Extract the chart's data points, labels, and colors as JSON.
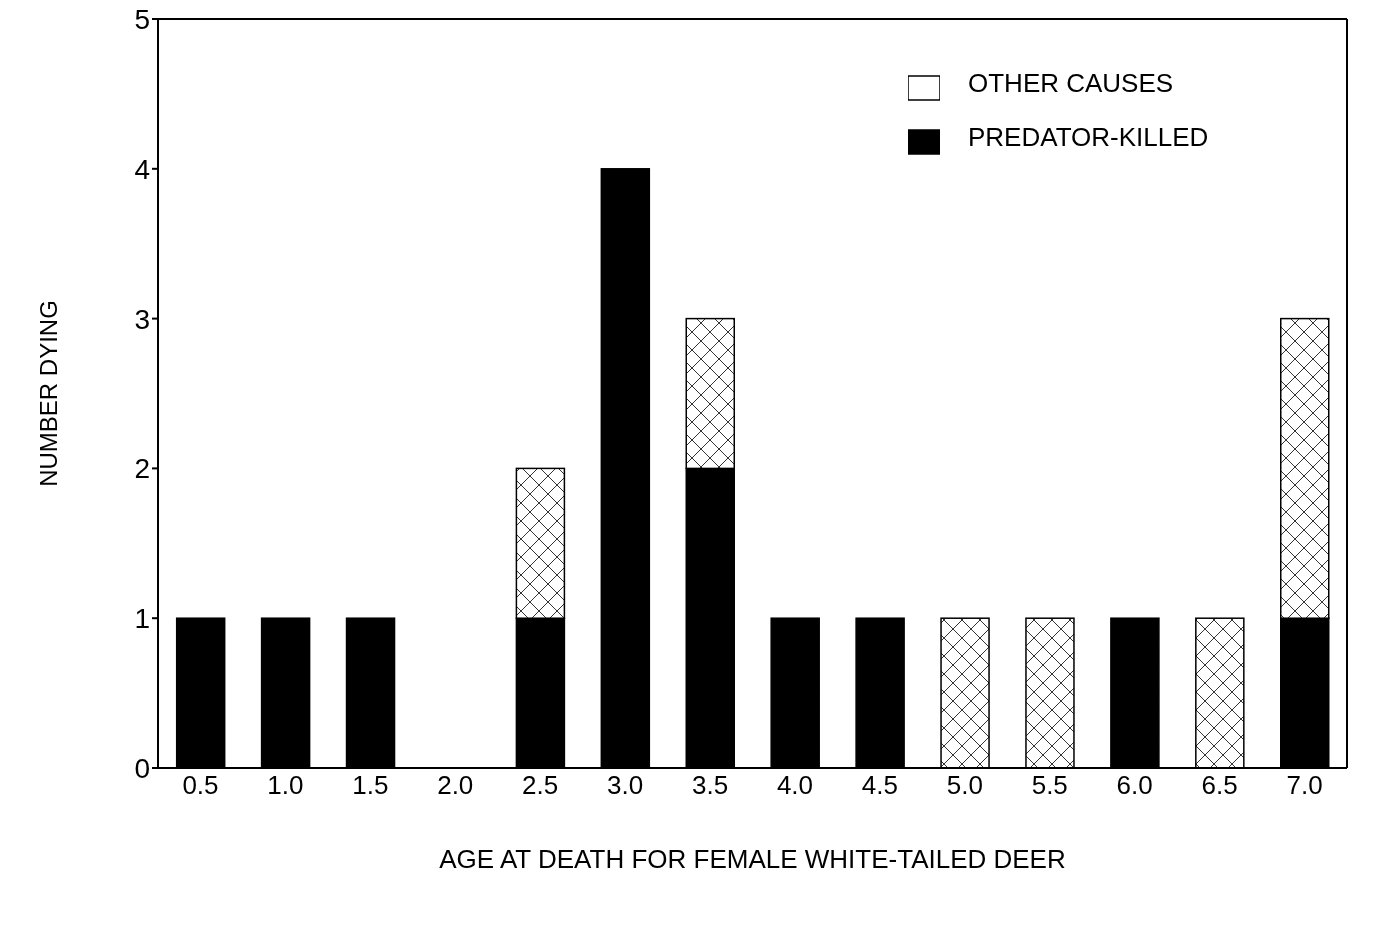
{
  "chart_data": {
    "type": "bar",
    "stacked": true,
    "xlabel": "AGE AT DEATH FOR FEMALE WHITE-TAILED DEER",
    "ylabel": "NUMBER DYING",
    "categories": [
      "0.5",
      "1.0",
      "1.5",
      "2.0",
      "2.5",
      "3.0",
      "3.5",
      "4.0",
      "4.5",
      "5.0",
      "5.5",
      "6.0",
      "6.5",
      "7.0"
    ],
    "series": [
      {
        "name": "PREDATOR-KILLED",
        "color": "#000000",
        "values": [
          1,
          1,
          1,
          0,
          1,
          4,
          2,
          1,
          1,
          0,
          0,
          1,
          0,
          1
        ]
      },
      {
        "name": "OTHER CAUSES",
        "color": "#ffffff",
        "values": [
          0,
          0,
          0,
          0,
          1,
          0,
          1,
          0,
          0,
          1,
          1,
          0,
          1,
          2
        ]
      }
    ],
    "ylim": [
      0,
      5
    ],
    "yticks": [
      0,
      1,
      2,
      3,
      4,
      5
    ],
    "grid": false,
    "legend": "top right"
  }
}
